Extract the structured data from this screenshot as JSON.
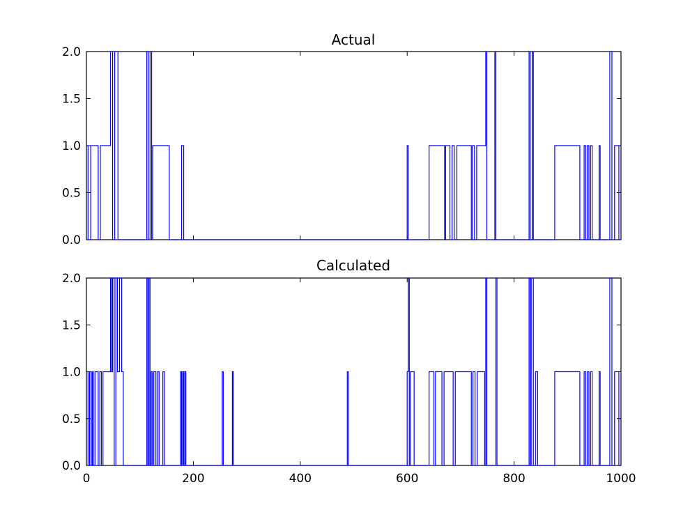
{
  "chart_data": [
    {
      "type": "line",
      "title": "Actual",
      "xlabel": "",
      "ylabel": "",
      "xlim": [
        0,
        1000
      ],
      "ylim": [
        0,
        2
      ],
      "yticks": [
        0.0,
        0.5,
        1.0,
        1.5,
        2.0
      ],
      "ytick_labels": [
        "0.0",
        "0.5",
        "1.0",
        "1.5",
        "2.0"
      ],
      "xticks": [
        0,
        200,
        400,
        600,
        800,
        1000
      ],
      "xtick_labels": [],
      "grid": false,
      "line_color": "#0000ff",
      "step": true,
      "x": [
        0,
        3,
        8,
        13,
        17,
        22,
        26,
        45,
        49,
        53,
        59,
        113,
        116,
        119,
        122,
        124,
        155,
        157,
        178,
        182,
        184,
        199,
        600,
        602,
        606,
        641,
        670,
        672,
        680,
        684,
        688,
        693,
        720,
        722,
        726,
        730,
        735,
        747,
        749,
        764,
        766,
        828,
        830,
        834,
        836,
        876,
        878,
        923,
        927,
        931,
        934,
        937,
        940,
        943,
        946,
        959,
        961,
        979,
        983,
        988,
        990,
        996,
        1000
      ],
      "y": [
        1,
        0,
        1,
        1,
        1,
        0,
        1,
        2,
        0,
        2,
        0,
        2,
        0,
        2,
        0,
        1,
        0,
        0,
        1,
        0,
        0,
        0,
        1,
        0,
        0,
        1,
        0,
        1,
        0,
        1,
        0,
        1,
        0,
        1,
        0,
        1,
        1,
        2,
        0,
        2,
        0,
        2,
        0,
        2,
        0,
        1,
        1,
        0,
        0,
        1,
        0,
        1,
        0,
        1,
        0,
        1,
        0,
        2,
        0,
        1,
        1,
        0,
        0
      ]
    },
    {
      "type": "line",
      "title": "Calculated",
      "xlabel": "",
      "ylabel": "",
      "xlim": [
        0,
        1000
      ],
      "ylim": [
        0,
        2
      ],
      "yticks": [
        0.0,
        0.5,
        1.0,
        1.5,
        2.0
      ],
      "ytick_labels": [
        "0.0",
        "0.5",
        "1.0",
        "1.5",
        "2.0"
      ],
      "xticks": [
        0,
        200,
        400,
        600,
        800,
        1000
      ],
      "xtick_labels": [
        "0",
        "200",
        "400",
        "600",
        "800",
        "1000"
      ],
      "grid": false,
      "line_color": "#0000ff",
      "step": true,
      "x": [
        0,
        3,
        6,
        9,
        11,
        13,
        16,
        22,
        25,
        28,
        31,
        45,
        47,
        49,
        52,
        55,
        58,
        62,
        66,
        69,
        113,
        115,
        117,
        119,
        121,
        123,
        126,
        130,
        133,
        136,
        143,
        146,
        157,
        176,
        178,
        180,
        182,
        184,
        186,
        254,
        256,
        273,
        275,
        488,
        490,
        600,
        602,
        604,
        606,
        611,
        613,
        641,
        650,
        653,
        665,
        669,
        686,
        690,
        720,
        723,
        727,
        731,
        745,
        747,
        749,
        766,
        768,
        828,
        830,
        832,
        836,
        840,
        844,
        876,
        878,
        923,
        927,
        931,
        934,
        937,
        940,
        943,
        946,
        959,
        961,
        979,
        983,
        988,
        990,
        996,
        1000
      ],
      "y": [
        1,
        0,
        1,
        0,
        1,
        0,
        1,
        0,
        1,
        0,
        1,
        2,
        1,
        2,
        0,
        2,
        1,
        2,
        1,
        0,
        2,
        0,
        2,
        0,
        1,
        0,
        1,
        0,
        1,
        0,
        1,
        0,
        0,
        1,
        0,
        1,
        0,
        1,
        0,
        1,
        0,
        1,
        0,
        1,
        0,
        1,
        2,
        0,
        1,
        1,
        0,
        1,
        0,
        1,
        0,
        1,
        0,
        1,
        0,
        1,
        0,
        1,
        0,
        2,
        0,
        2,
        0,
        2,
        0,
        2,
        0,
        1,
        0,
        1,
        1,
        0,
        0,
        1,
        0,
        1,
        0,
        1,
        0,
        1,
        0,
        2,
        0,
        1,
        1,
        0,
        0
      ]
    }
  ]
}
